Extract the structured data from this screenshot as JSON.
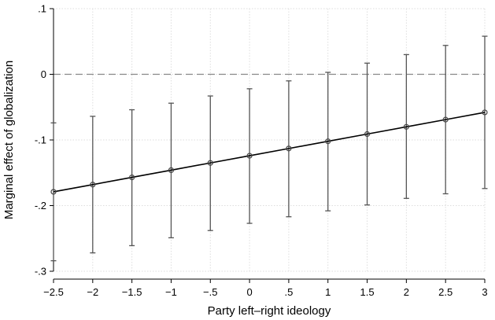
{
  "chart_data": {
    "type": "line",
    "title": "",
    "xlabel": "Party left–right ideology",
    "ylabel": "Marginal effect of globalization",
    "xlim": [
      -2.5,
      3
    ],
    "ylim": [
      -0.3,
      0.1
    ],
    "x_ticks": [
      -2.5,
      -2,
      -1.5,
      -1,
      -0.5,
      0,
      0.5,
      1,
      1.5,
      2,
      2.5,
      3
    ],
    "x_tick_labels": [
      "−2.5",
      "−2",
      "−1.5",
      "−1",
      "−.5",
      "0",
      ".5",
      "1",
      "1.5",
      "2",
      "2.5",
      "3"
    ],
    "y_ticks": [
      0.1,
      0,
      -0.1,
      -0.2,
      -0.3
    ],
    "y_tick_labels": [
      ".1",
      "0",
      "-.1",
      "-.2",
      "-.3"
    ],
    "reference_line_y": 0,
    "grid": true,
    "series": [
      {
        "x": [
          -2.5,
          -2,
          -1.5,
          -1,
          -0.5,
          0,
          0.5,
          1,
          1.5,
          2,
          2.5,
          3
        ],
        "y": [
          -0.179,
          -0.168,
          -0.157,
          -0.146,
          -0.135,
          -0.124,
          -0.113,
          -0.102,
          -0.091,
          -0.08,
          -0.069,
          -0.058
        ],
        "ci_lower": [
          -0.284,
          -0.272,
          -0.261,
          -0.249,
          -0.238,
          -0.227,
          -0.217,
          -0.208,
          -0.199,
          -0.189,
          -0.182,
          -0.174
        ],
        "ci_upper": [
          -0.074,
          -0.064,
          -0.054,
          -0.044,
          -0.033,
          -0.022,
          -0.01,
          0.003,
          0.017,
          0.03,
          0.044,
          0.058
        ]
      }
    ],
    "colors": {
      "line": "#000000",
      "error_bar": "#555555",
      "marker": "#444444",
      "grid": "#dddddd",
      "reference": "#888888"
    }
  }
}
